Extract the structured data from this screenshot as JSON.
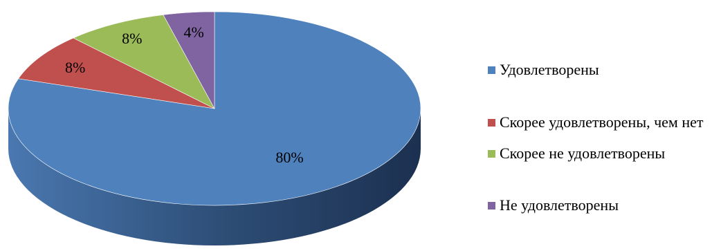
{
  "chart_data": {
    "type": "pie",
    "title": "",
    "categories": [
      "Удовлетворены",
      "Скорее удовлетворены, чем нет",
      "Скорее не удовлетворены",
      "Не удовлетворены"
    ],
    "values": [
      80,
      8,
      8,
      4
    ],
    "data_labels": [
      "80%",
      "8%",
      "8%",
      "4%"
    ],
    "colors": [
      "#4f81bd",
      "#c0504d",
      "#9bbb59",
      "#8064a2"
    ],
    "style": "3d",
    "legend_position": "right"
  }
}
